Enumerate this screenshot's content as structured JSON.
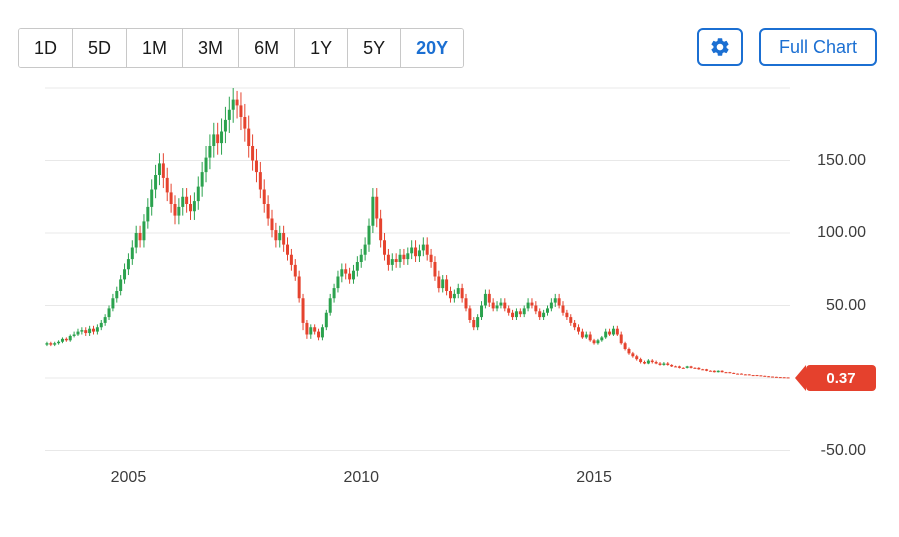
{
  "toolbar": {
    "ranges": [
      {
        "label": "1D",
        "selected": false
      },
      {
        "label": "5D",
        "selected": false
      },
      {
        "label": "1M",
        "selected": false
      },
      {
        "label": "3M",
        "selected": false
      },
      {
        "label": "6M",
        "selected": false
      },
      {
        "label": "1Y",
        "selected": false
      },
      {
        "label": "5Y",
        "selected": false
      },
      {
        "label": "20Y",
        "selected": true
      }
    ],
    "settings_icon": "gear-icon",
    "full_chart_label": "Full Chart"
  },
  "colors": {
    "accent": "#1b6fd2",
    "badge": "#e5412d",
    "up": "#2ba24e",
    "down": "#e5432e",
    "grid": "#e8e8e8",
    "axis_text": "#3c3c3c",
    "button_text": "#1a1a1a",
    "border": "#c8c8c8"
  },
  "chart_data": {
    "type": "candlestick",
    "interval": "monthly",
    "start": "2003-04",
    "ohlc_format": [
      "open",
      "high",
      "low",
      "close"
    ],
    "x_labels": [
      "2005",
      "2010",
      "2015"
    ],
    "y_ticks": [
      {
        "value": 150,
        "label": "150.00"
      },
      {
        "value": 100,
        "label": "100.00"
      },
      {
        "value": 50,
        "label": "50.00"
      },
      {
        "value": -50,
        "label": "-50.00"
      }
    ],
    "gridlines": [
      200,
      150,
      100,
      50,
      0,
      -50
    ],
    "ylim": [
      -56,
      205
    ],
    "last_price": "0.37",
    "candles": [
      [
        23,
        25,
        22,
        24
      ],
      [
        24,
        25,
        22,
        23
      ],
      [
        23,
        25,
        22,
        24
      ],
      [
        24,
        26,
        23,
        25
      ],
      [
        25,
        28,
        24,
        27
      ],
      [
        27,
        28,
        25,
        26
      ],
      [
        26,
        30,
        25,
        29
      ],
      [
        29,
        32,
        28,
        30
      ],
      [
        30,
        34,
        29,
        32
      ],
      [
        32,
        35,
        30,
        33
      ],
      [
        33,
        35,
        29,
        31
      ],
      [
        31,
        36,
        29,
        34
      ],
      [
        34,
        36,
        30,
        32
      ],
      [
        32,
        37,
        30,
        35
      ],
      [
        35,
        40,
        33,
        38
      ],
      [
        38,
        44,
        36,
        42
      ],
      [
        42,
        50,
        40,
        48
      ],
      [
        48,
        58,
        46,
        55
      ],
      [
        55,
        63,
        52,
        60
      ],
      [
        60,
        71,
        57,
        68
      ],
      [
        68,
        79,
        65,
        75
      ],
      [
        75,
        86,
        71,
        82
      ],
      [
        82,
        95,
        78,
        90
      ],
      [
        90,
        105,
        86,
        100
      ],
      [
        100,
        105,
        90,
        95
      ],
      [
        95,
        113,
        90,
        108
      ],
      [
        108,
        124,
        103,
        118
      ],
      [
        118,
        137,
        112,
        130
      ],
      [
        130,
        147,
        124,
        140
      ],
      [
        140,
        155,
        133,
        148
      ],
      [
        148,
        155,
        131,
        138
      ],
      [
        138,
        145,
        122,
        128
      ],
      [
        128,
        134,
        114,
        120
      ],
      [
        120,
        126,
        106,
        112
      ],
      [
        112,
        124,
        106,
        118
      ],
      [
        118,
        131,
        112,
        125
      ],
      [
        125,
        131,
        114,
        120
      ],
      [
        120,
        126,
        109,
        115
      ],
      [
        115,
        128,
        109,
        122
      ],
      [
        122,
        139,
        116,
        132
      ],
      [
        132,
        149,
        125,
        142
      ],
      [
        142,
        160,
        135,
        152
      ],
      [
        152,
        168,
        144,
        160
      ],
      [
        160,
        176,
        152,
        168
      ],
      [
        168,
        176,
        154,
        162
      ],
      [
        162,
        179,
        154,
        170
      ],
      [
        170,
        187,
        162,
        178
      ],
      [
        178,
        194,
        169,
        185
      ],
      [
        185,
        200,
        176,
        192
      ],
      [
        192,
        198,
        179,
        188
      ],
      [
        188,
        197,
        171,
        180
      ],
      [
        180,
        189,
        163,
        172
      ],
      [
        172,
        181,
        152,
        160
      ],
      [
        160,
        168,
        143,
        150
      ],
      [
        150,
        158,
        135,
        142
      ],
      [
        142,
        149,
        124,
        130
      ],
      [
        130,
        137,
        114,
        120
      ],
      [
        120,
        126,
        105,
        110
      ],
      [
        110,
        116,
        97,
        102
      ],
      [
        102,
        107,
        90,
        95
      ],
      [
        95,
        105,
        90,
        100
      ],
      [
        100,
        105,
        87,
        92
      ],
      [
        92,
        97,
        81,
        85
      ],
      [
        85,
        89,
        74,
        78
      ],
      [
        78,
        82,
        67,
        70
      ],
      [
        70,
        74,
        52,
        55
      ],
      [
        55,
        58,
        33,
        38
      ],
      [
        38,
        40,
        27,
        30
      ],
      [
        30,
        37,
        27,
        35
      ],
      [
        35,
        37,
        30,
        32
      ],
      [
        32,
        34,
        26,
        28
      ],
      [
        28,
        37,
        26,
        35
      ],
      [
        35,
        47,
        33,
        45
      ],
      [
        45,
        58,
        43,
        55
      ],
      [
        55,
        65,
        52,
        62
      ],
      [
        62,
        74,
        59,
        70
      ],
      [
        70,
        79,
        66,
        75
      ],
      [
        75,
        79,
        68,
        72
      ],
      [
        72,
        76,
        65,
        68
      ],
      [
        68,
        78,
        65,
        74
      ],
      [
        74,
        84,
        70,
        80
      ],
      [
        80,
        89,
        76,
        85
      ],
      [
        85,
        97,
        81,
        92
      ],
      [
        92,
        110,
        87,
        105
      ],
      [
        105,
        131,
        100,
        125
      ],
      [
        125,
        131,
        104,
        110
      ],
      [
        110,
        116,
        90,
        95
      ],
      [
        95,
        100,
        81,
        85
      ],
      [
        85,
        89,
        74,
        78
      ],
      [
        78,
        86,
        74,
        82
      ],
      [
        82,
        86,
        76,
        80
      ],
      [
        80,
        89,
        76,
        85
      ],
      [
        85,
        89,
        78,
        82
      ],
      [
        82,
        90,
        78,
        86
      ],
      [
        86,
        95,
        82,
        90
      ],
      [
        90,
        95,
        80,
        84
      ],
      [
        84,
        92,
        80,
        88
      ],
      [
        88,
        97,
        84,
        92
      ],
      [
        92,
        97,
        81,
        85
      ],
      [
        85,
        89,
        76,
        80
      ],
      [
        80,
        84,
        67,
        70
      ],
      [
        70,
        74,
        59,
        62
      ],
      [
        62,
        71,
        59,
        68
      ],
      [
        68,
        71,
        57,
        60
      ],
      [
        60,
        63,
        52,
        55
      ],
      [
        55,
        61,
        52,
        58
      ],
      [
        58,
        65,
        55,
        62
      ],
      [
        62,
        65,
        52,
        55
      ],
      [
        55,
        58,
        46,
        48
      ],
      [
        48,
        50,
        38,
        40
      ],
      [
        40,
        42,
        33,
        35
      ],
      [
        35,
        44,
        33,
        42
      ],
      [
        42,
        53,
        40,
        50
      ],
      [
        50,
        61,
        48,
        58
      ],
      [
        58,
        61,
        49,
        52
      ],
      [
        52,
        55,
        46,
        48
      ],
      [
        48,
        53,
        46,
        50
      ],
      [
        50,
        55,
        48,
        52
      ],
      [
        52,
        55,
        46,
        48
      ],
      [
        48,
        50,
        43,
        45
      ],
      [
        45,
        47,
        40,
        42
      ],
      [
        42,
        48,
        40,
        46
      ],
      [
        46,
        48,
        42,
        44
      ],
      [
        44,
        50,
        42,
        48
      ],
      [
        48,
        55,
        46,
        52
      ],
      [
        52,
        55,
        48,
        50
      ],
      [
        50,
        53,
        44,
        46
      ],
      [
        46,
        48,
        40,
        42
      ],
      [
        42,
        47,
        40,
        45
      ],
      [
        45,
        50,
        43,
        48
      ],
      [
        48,
        55,
        46,
        52
      ],
      [
        52,
        58,
        49,
        55
      ],
      [
        55,
        58,
        48,
        50
      ],
      [
        50,
        53,
        43,
        45
      ],
      [
        45,
        47,
        40,
        42
      ],
      [
        42,
        44,
        36,
        38
      ],
      [
        38,
        40,
        33,
        35
      ],
      [
        35,
        37,
        30,
        32
      ],
      [
        32,
        34,
        27,
        28
      ],
      [
        28,
        32,
        27,
        30
      ],
      [
        30,
        32,
        25,
        26
      ],
      [
        26,
        27,
        23,
        24
      ],
      [
        24,
        27,
        23,
        26
      ],
      [
        26,
        29,
        25,
        28
      ],
      [
        28,
        34,
        27,
        32
      ],
      [
        32,
        34,
        29,
        30
      ],
      [
        30,
        36,
        29,
        34
      ],
      [
        34,
        36,
        29,
        30
      ],
      [
        30,
        32,
        23,
        24
      ],
      [
        24,
        25,
        19,
        20
      ],
      [
        20,
        21,
        16,
        17
      ],
      [
        17,
        18,
        14,
        15
      ],
      [
        15,
        16,
        12,
        13
      ],
      [
        13,
        14,
        10,
        11
      ],
      [
        11,
        12,
        9.5,
        10
      ],
      [
        10,
        13,
        9.5,
        12
      ],
      [
        12,
        13,
        10,
        11
      ],
      [
        11,
        12,
        9.5,
        10
      ],
      [
        10,
        11,
        8.5,
        9
      ],
      [
        9,
        11,
        8.5,
        10
      ],
      [
        10,
        11,
        8.5,
        9
      ],
      [
        9,
        9.5,
        7.6,
        8
      ],
      [
        8,
        8.5,
        7.6,
        7.9
      ],
      [
        8,
        8.5,
        6.6,
        7
      ],
      [
        7,
        7.4,
        6.6,
        6.9
      ],
      [
        7,
        8.4,
        6.6,
        8
      ],
      [
        8,
        8.4,
        6.6,
        7
      ],
      [
        7,
        7.4,
        6.6,
        6.9
      ],
      [
        7,
        7.4,
        5.7,
        6
      ],
      [
        6,
        6.3,
        5.7,
        5.9
      ],
      [
        6,
        6.3,
        4.7,
        5
      ],
      [
        5,
        5.3,
        4.7,
        4.9
      ],
      [
        5,
        5.3,
        3.8,
        4
      ],
      [
        4,
        5.3,
        3.8,
        5
      ],
      [
        5,
        5.3,
        3.8,
        4
      ],
      [
        4,
        4.2,
        3.8,
        3.9
      ],
      [
        4,
        4.2,
        3.3,
        3.5
      ],
      [
        3.5,
        3.7,
        2.8,
        3
      ],
      [
        3,
        3.2,
        2.8,
        2.9
      ],
      [
        3,
        3.2,
        2.4,
        2.5
      ],
      [
        2.5,
        2.6,
        2.4,
        2.45
      ],
      [
        2.5,
        2.6,
        1.9,
        2
      ],
      [
        2,
        2.1,
        1.9,
        1.95
      ],
      [
        2,
        2.1,
        1.7,
        1.8
      ],
      [
        1.8,
        1.9,
        1.4,
        1.5
      ],
      [
        1.5,
        1.6,
        1.1,
        1.2
      ],
      [
        1.2,
        1.3,
        0.9,
        1
      ],
      [
        1,
        1.05,
        0.75,
        0.8
      ],
      [
        0.8,
        0.85,
        0.55,
        0.6
      ],
      [
        0.6,
        0.65,
        0.45,
        0.5
      ],
      [
        0.5,
        0.55,
        0.38,
        0.4
      ],
      [
        0.4,
        0.42,
        0.35,
        0.37
      ]
    ]
  }
}
